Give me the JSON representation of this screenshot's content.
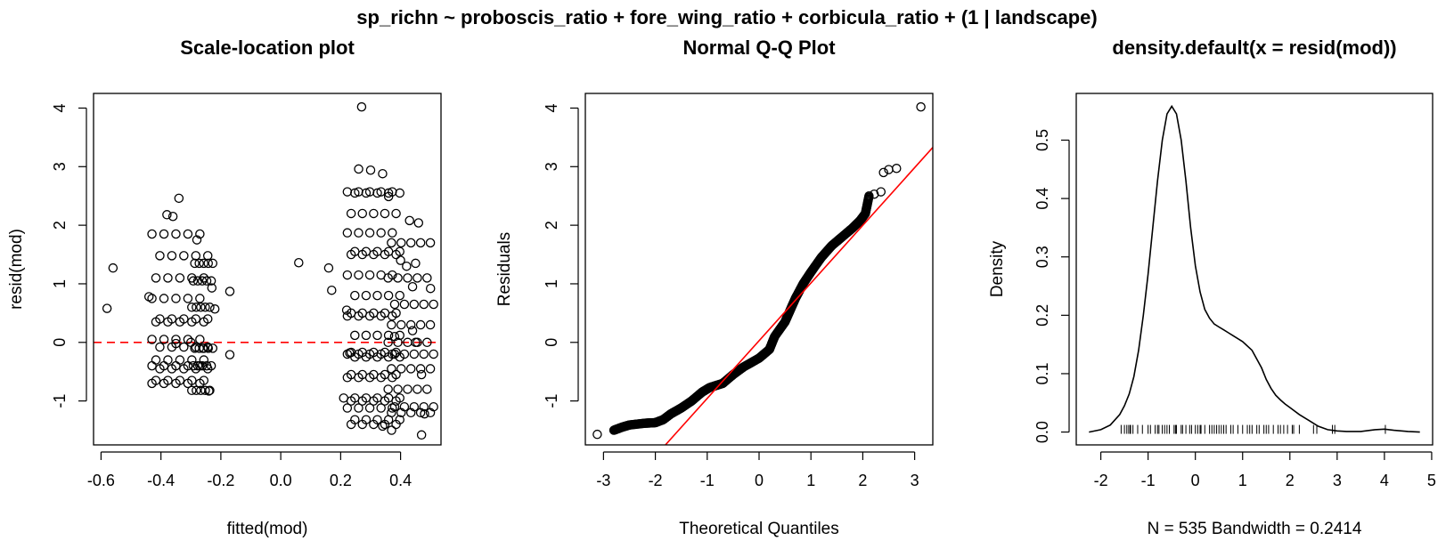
{
  "figure_title": "sp_richn ~ proboscis_ratio + fore_wing_ratio + corbicula_ratio + (1 | landscape)",
  "colors": {
    "reference_line": "#ff0000",
    "points": "#000000",
    "background": "#ffffff"
  },
  "chart_data": [
    {
      "type": "scatter",
      "title": "Scale-location plot",
      "xlabel": "fitted(mod)",
      "ylabel": "resid(mod)",
      "xlim": [
        -0.625,
        0.535
      ],
      "ylim": [
        -1.75,
        4.25
      ],
      "xticks": [
        -0.6,
        -0.4,
        -0.2,
        0.0,
        0.2,
        0.4
      ],
      "xtick_labels": [
        "-0.6",
        "-0.4",
        "-0.2",
        "0.0",
        "0.2",
        "0.4"
      ],
      "yticks": [
        -1,
        0,
        1,
        2,
        3,
        4
      ],
      "ytick_labels": [
        "-1",
        "0",
        "1",
        "2",
        "3",
        "4"
      ],
      "reference_line": {
        "y": 0,
        "style": "dashed",
        "color": "#ff0000"
      },
      "points": [
        [
          -0.58,
          0.58
        ],
        [
          -0.56,
          1.27
        ],
        [
          -0.44,
          0.78
        ],
        [
          -0.34,
          2.46
        ],
        [
          -0.38,
          2.18
        ],
        [
          -0.36,
          2.15
        ],
        [
          -0.28,
          1.75
        ],
        [
          -0.23,
          0.93
        ],
        [
          -0.22,
          0.57
        ],
        [
          -0.17,
          0.87
        ],
        [
          -0.17,
          -0.21
        ],
        [
          -0.24,
          -0.83
        ],
        [
          -0.26,
          -0.1
        ],
        [
          -0.35,
          -0.02
        ],
        [
          -0.3,
          0.0
        ],
        [
          0.06,
          1.36
        ],
        [
          0.16,
          1.27
        ],
        [
          0.17,
          0.89
        ],
        [
          0.27,
          4.02
        ],
        [
          0.26,
          2.96
        ],
        [
          0.3,
          2.94
        ],
        [
          0.34,
          2.88
        ],
        [
          0.36,
          2.49
        ],
        [
          0.4,
          1.4
        ],
        [
          0.42,
          1.3
        ],
        [
          0.43,
          2.08
        ],
        [
          0.46,
          2.04
        ],
        [
          0.45,
          1.35
        ],
        [
          0.44,
          0.95
        ],
        [
          0.5,
          0.92
        ],
        [
          0.44,
          0.2
        ],
        [
          0.45,
          0.0
        ],
        [
          0.38,
          0.1
        ],
        [
          0.37,
          -1.5
        ],
        [
          0.47,
          -1.58
        ],
        [
          0.48,
          -1.22
        ],
        [
          0.47,
          -0.55
        ],
        [
          0.34,
          -1.43
        ],
        [
          0.22,
          0.55
        ],
        [
          0.23,
          -0.18
        ],
        [
          0.21,
          -0.95
        ]
      ],
      "columns": [
        {
          "x_min": -0.43,
          "x_max": -0.27,
          "y_values": [
            -0.7,
            -0.65,
            -0.45,
            -0.4,
            -0.3,
            -0.08,
            0.05,
            0.35,
            0.4,
            0.75,
            1.1,
            1.48,
            1.85
          ]
        },
        {
          "x_min": -0.3,
          "x_max": -0.24,
          "y_values": [
            -0.82,
            -0.4,
            -0.1,
            0.6,
            1.05,
            1.35
          ]
        },
        {
          "x_min": 0.22,
          "x_max": 0.37,
          "y_values": [
            -1.4,
            -1.32,
            -1.12,
            -1.0,
            -0.95,
            -0.6,
            -0.55,
            -0.25,
            -0.2,
            -0.17,
            0.12,
            0.45,
            0.5,
            0.8,
            1.15,
            1.5,
            1.55,
            1.87,
            2.2,
            2.55,
            2.57
          ]
        },
        {
          "x_min": 0.35,
          "x_max": 0.48,
          "y_values": [
            -1.2,
            -1.1,
            -0.8,
            -0.45,
            -0.2,
            0.0,
            0.3,
            0.65,
            1.1,
            1.7
          ]
        }
      ]
    },
    {
      "type": "scatter",
      "title": "Normal Q-Q Plot",
      "xlabel": "Theoretical Quantiles",
      "ylabel": "Residuals",
      "xlim": [
        -3.35,
        3.35
      ],
      "ylim": [
        -1.75,
        4.25
      ],
      "xticks": [
        -3,
        -2,
        -1,
        0,
        1,
        2,
        3
      ],
      "xtick_labels": [
        "-3",
        "-2",
        "-1",
        "0",
        "1",
        "2",
        "3"
      ],
      "yticks": [
        -1,
        0,
        1,
        2,
        3,
        4
      ],
      "ytick_labels": [
        "-1",
        "0",
        "1",
        "2",
        "3",
        "4"
      ],
      "reference_line": {
        "intercept": 0.028,
        "slope": 0.985,
        "color": "#ff0000"
      },
      "n": 535,
      "qq_curve": [
        [
          -3.12,
          -1.57
        ],
        [
          -2.8,
          -1.5
        ],
        [
          -2.65,
          -1.45
        ],
        [
          -2.5,
          -1.41
        ],
        [
          -2.2,
          -1.38
        ],
        [
          -2.0,
          -1.37
        ],
        [
          -1.85,
          -1.32
        ],
        [
          -1.7,
          -1.22
        ],
        [
          -1.5,
          -1.12
        ],
        [
          -1.3,
          -1.0
        ],
        [
          -1.1,
          -0.85
        ],
        [
          -0.95,
          -0.77
        ],
        [
          -0.7,
          -0.7
        ],
        [
          -0.5,
          -0.55
        ],
        [
          -0.3,
          -0.42
        ],
        [
          0.0,
          -0.27
        ],
        [
          0.2,
          -0.12
        ],
        [
          0.3,
          0.1
        ],
        [
          0.5,
          0.35
        ],
        [
          0.6,
          0.55
        ],
        [
          0.7,
          0.75
        ],
        [
          0.85,
          1.0
        ],
        [
          1.0,
          1.2
        ],
        [
          1.2,
          1.45
        ],
        [
          1.4,
          1.65
        ],
        [
          1.6,
          1.8
        ],
        [
          1.8,
          1.95
        ],
        [
          1.95,
          2.08
        ],
        [
          2.05,
          2.2
        ],
        [
          2.12,
          2.5
        ],
        [
          2.22,
          2.53
        ],
        [
          2.35,
          2.57
        ],
        [
          2.4,
          2.9
        ],
        [
          2.5,
          2.95
        ],
        [
          2.65,
          2.97
        ],
        [
          3.12,
          4.02
        ]
      ]
    },
    {
      "type": "line",
      "title": "density.default(x = resid(mod))",
      "xlabel": "N = 535   Bandwidth = 0.2414",
      "ylabel": "Density",
      "xlim": [
        -2.52,
        5.02
      ],
      "ylim": [
        -0.022,
        0.58
      ],
      "xticks": [
        -2,
        -1,
        0,
        1,
        2,
        3,
        4,
        5
      ],
      "xtick_labels": [
        "-2",
        "-1",
        "0",
        "1",
        "2",
        "3",
        "4",
        "5"
      ],
      "yticks": [
        0.0,
        0.1,
        0.2,
        0.3,
        0.4,
        0.5
      ],
      "ytick_labels": [
        "0.0",
        "0.1",
        "0.2",
        "0.3",
        "0.4",
        "0.5"
      ],
      "x": [
        -2.25,
        -2.0,
        -1.8,
        -1.6,
        -1.5,
        -1.4,
        -1.3,
        -1.2,
        -1.1,
        -1.0,
        -0.9,
        -0.8,
        -0.7,
        -0.6,
        -0.5,
        -0.4,
        -0.3,
        -0.2,
        -0.1,
        0.0,
        0.1,
        0.2,
        0.3,
        0.4,
        0.5,
        0.6,
        0.7,
        0.8,
        1.0,
        1.2,
        1.4,
        1.5,
        1.6,
        1.7,
        1.8,
        1.9,
        2.0,
        2.2,
        2.4,
        2.6,
        2.8,
        3.0,
        3.2,
        3.5,
        3.8,
        4.0,
        4.2,
        4.5,
        4.75
      ],
      "y": [
        0.0,
        0.004,
        0.012,
        0.03,
        0.045,
        0.065,
        0.095,
        0.14,
        0.2,
        0.27,
        0.35,
        0.43,
        0.5,
        0.545,
        0.558,
        0.545,
        0.5,
        0.43,
        0.35,
        0.285,
        0.24,
        0.21,
        0.195,
        0.185,
        0.18,
        0.175,
        0.17,
        0.165,
        0.155,
        0.14,
        0.11,
        0.09,
        0.075,
        0.063,
        0.055,
        0.048,
        0.042,
        0.03,
        0.02,
        0.01,
        0.004,
        0.002,
        0.001,
        0.001,
        0.004,
        0.005,
        0.003,
        0.001,
        0.0
      ],
      "rug_x": [
        -1.57,
        -1.5,
        -1.45,
        -1.41,
        -1.38,
        -1.37,
        -1.32,
        -1.22,
        -1.12,
        -1.0,
        -0.95,
        -0.85,
        -0.8,
        -0.77,
        -0.7,
        -0.65,
        -0.6,
        -0.55,
        -0.45,
        -0.42,
        -0.4,
        -0.3,
        -0.27,
        -0.2,
        -0.12,
        -0.08,
        0.0,
        0.05,
        0.1,
        0.12,
        0.2,
        0.3,
        0.35,
        0.4,
        0.45,
        0.5,
        0.55,
        0.6,
        0.65,
        0.75,
        0.8,
        0.9,
        1.0,
        1.1,
        1.15,
        1.2,
        1.3,
        1.35,
        1.45,
        1.5,
        1.55,
        1.65,
        1.75,
        1.8,
        1.87,
        1.95,
        2.05,
        2.08,
        2.2,
        2.5,
        2.57,
        2.9,
        2.95,
        4.02
      ]
    }
  ]
}
